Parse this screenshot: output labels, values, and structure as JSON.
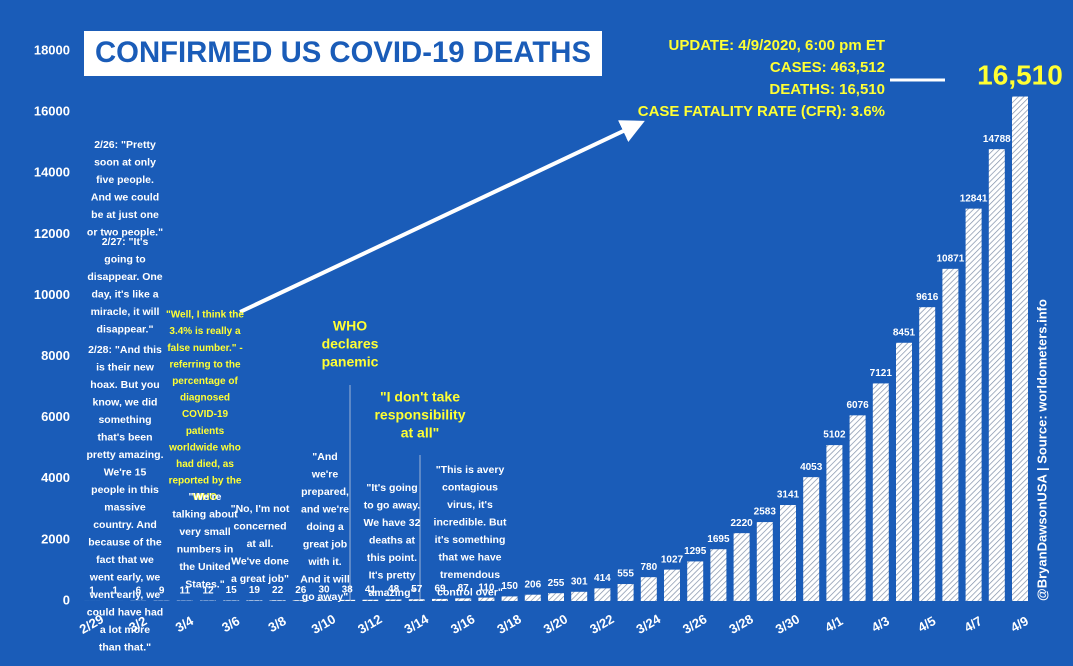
{
  "chart_data": {
    "type": "bar",
    "title": "CONFIRMED US COVID-19 DEATHS",
    "categories": [
      "2/29",
      null,
      "3/2",
      null,
      "3/4",
      null,
      "3/6",
      null,
      "3/8",
      null,
      "3/10",
      null,
      "3/12",
      null,
      "3/14",
      null,
      "3/16",
      null,
      "3/18",
      null,
      "3/20",
      null,
      "3/22",
      null,
      "3/24",
      null,
      "3/26",
      null,
      "3/28",
      null,
      "3/30",
      null,
      "4/1",
      null,
      "4/3",
      null,
      "4/5",
      null,
      "4/7",
      null,
      "4/9"
    ],
    "values": [
      1,
      1,
      6,
      9,
      11,
      12,
      15,
      19,
      22,
      26,
      30,
      38,
      41,
      48,
      57,
      69,
      87,
      110,
      150,
      206,
      255,
      301,
      414,
      555,
      780,
      1027,
      1295,
      1695,
      2220,
      2583,
      3141,
      4053,
      5102,
      6076,
      7121,
      8451,
      9616,
      10871,
      12841,
      14788,
      16510
    ],
    "value_labels": [
      "1",
      "1",
      "6",
      "9",
      "11",
      "12",
      "15",
      "19",
      "22",
      "26",
      "30",
      "38",
      "41",
      "48",
      "57",
      "69",
      "87",
      "110",
      "150",
      "206",
      "255",
      "301",
      "414",
      "555",
      "780",
      "1027",
      "1295",
      "1695",
      "2220",
      "2583",
      "3141",
      "4053",
      "5102",
      "6076",
      "7121",
      "8451",
      "9616",
      "10871",
      "12841",
      "14788",
      "16,510"
    ],
    "color": "#ffffff",
    "ylim": [
      0,
      18000
    ],
    "yticks": [
      0,
      2000,
      4000,
      6000,
      8000,
      10000,
      12000,
      14000,
      16000,
      18000
    ],
    "update": [
      "UPDATE: 4/9/2020, 6:00 pm ET",
      "CASES: 463,512",
      "DEATHS: 16,510",
      "CASE FATALITY RATE (CFR): 3.6%"
    ],
    "source": "@BryanDawsonUSA  |  Source: worldometers.info",
    "annotations": [
      {
        "color": "white",
        "lines": [
          "2/26: \"Pretty",
          "soon at only",
          "five people.",
          "And we could",
          "be at just one",
          "or two people.\""
        ]
      },
      {
        "color": "white",
        "lines": [
          "2/27: \"It's",
          "going to",
          "disappear. One",
          "day, it's like a",
          "miracle, it will",
          "disappear.\""
        ]
      },
      {
        "color": "white",
        "lines": [
          "2/28: \"And this",
          "is their new",
          "hoax. But you",
          "know, we did",
          "something",
          "that's been",
          "pretty amazing.",
          "We're 15",
          "people in this",
          "massive",
          "country. And",
          "because of the",
          "fact that we",
          "went early, we",
          "went early, we",
          "could have had",
          "a lot more",
          "than that.\""
        ]
      },
      {
        "color": "yellow",
        "lines": [
          "\"Well, I think the",
          "3.4% is really a",
          "false number.\" -",
          "referring to the",
          "percentage of",
          "diagnosed",
          "COVID-19",
          "patients",
          "worldwide who",
          "had died, as",
          "reported by the",
          "WHO"
        ]
      },
      {
        "color": "white",
        "lines": [
          "\"We're",
          "talking about",
          "very small",
          "numbers in",
          "the United",
          "States.\""
        ]
      },
      {
        "color": "white",
        "lines": [
          "\"No, I'm not",
          "concerned",
          "at all.",
          "We've done",
          "a great job\""
        ]
      },
      {
        "color": "white",
        "lines": [
          "\"And",
          "we're",
          "prepared,",
          "and we're",
          "doing a",
          "great job",
          "with it.",
          "And it will",
          "go away\""
        ]
      },
      {
        "color": "yellow",
        "lines": [
          "WHO",
          "declares",
          "panemic"
        ]
      },
      {
        "color": "yellow",
        "lines": [
          "\"I don't take",
          "responsibility",
          "at all\""
        ]
      },
      {
        "color": "white",
        "lines": [
          "\"It's going",
          "to go away.",
          "We have 32",
          "deaths at",
          "this point.",
          "It's pretty",
          "amazing\""
        ]
      },
      {
        "color": "white",
        "lines": [
          "\"This is avery",
          "contagious",
          "virus, it's",
          "incredible. But",
          "it's something",
          "that we have",
          "tremendous",
          "control over\""
        ]
      }
    ]
  }
}
